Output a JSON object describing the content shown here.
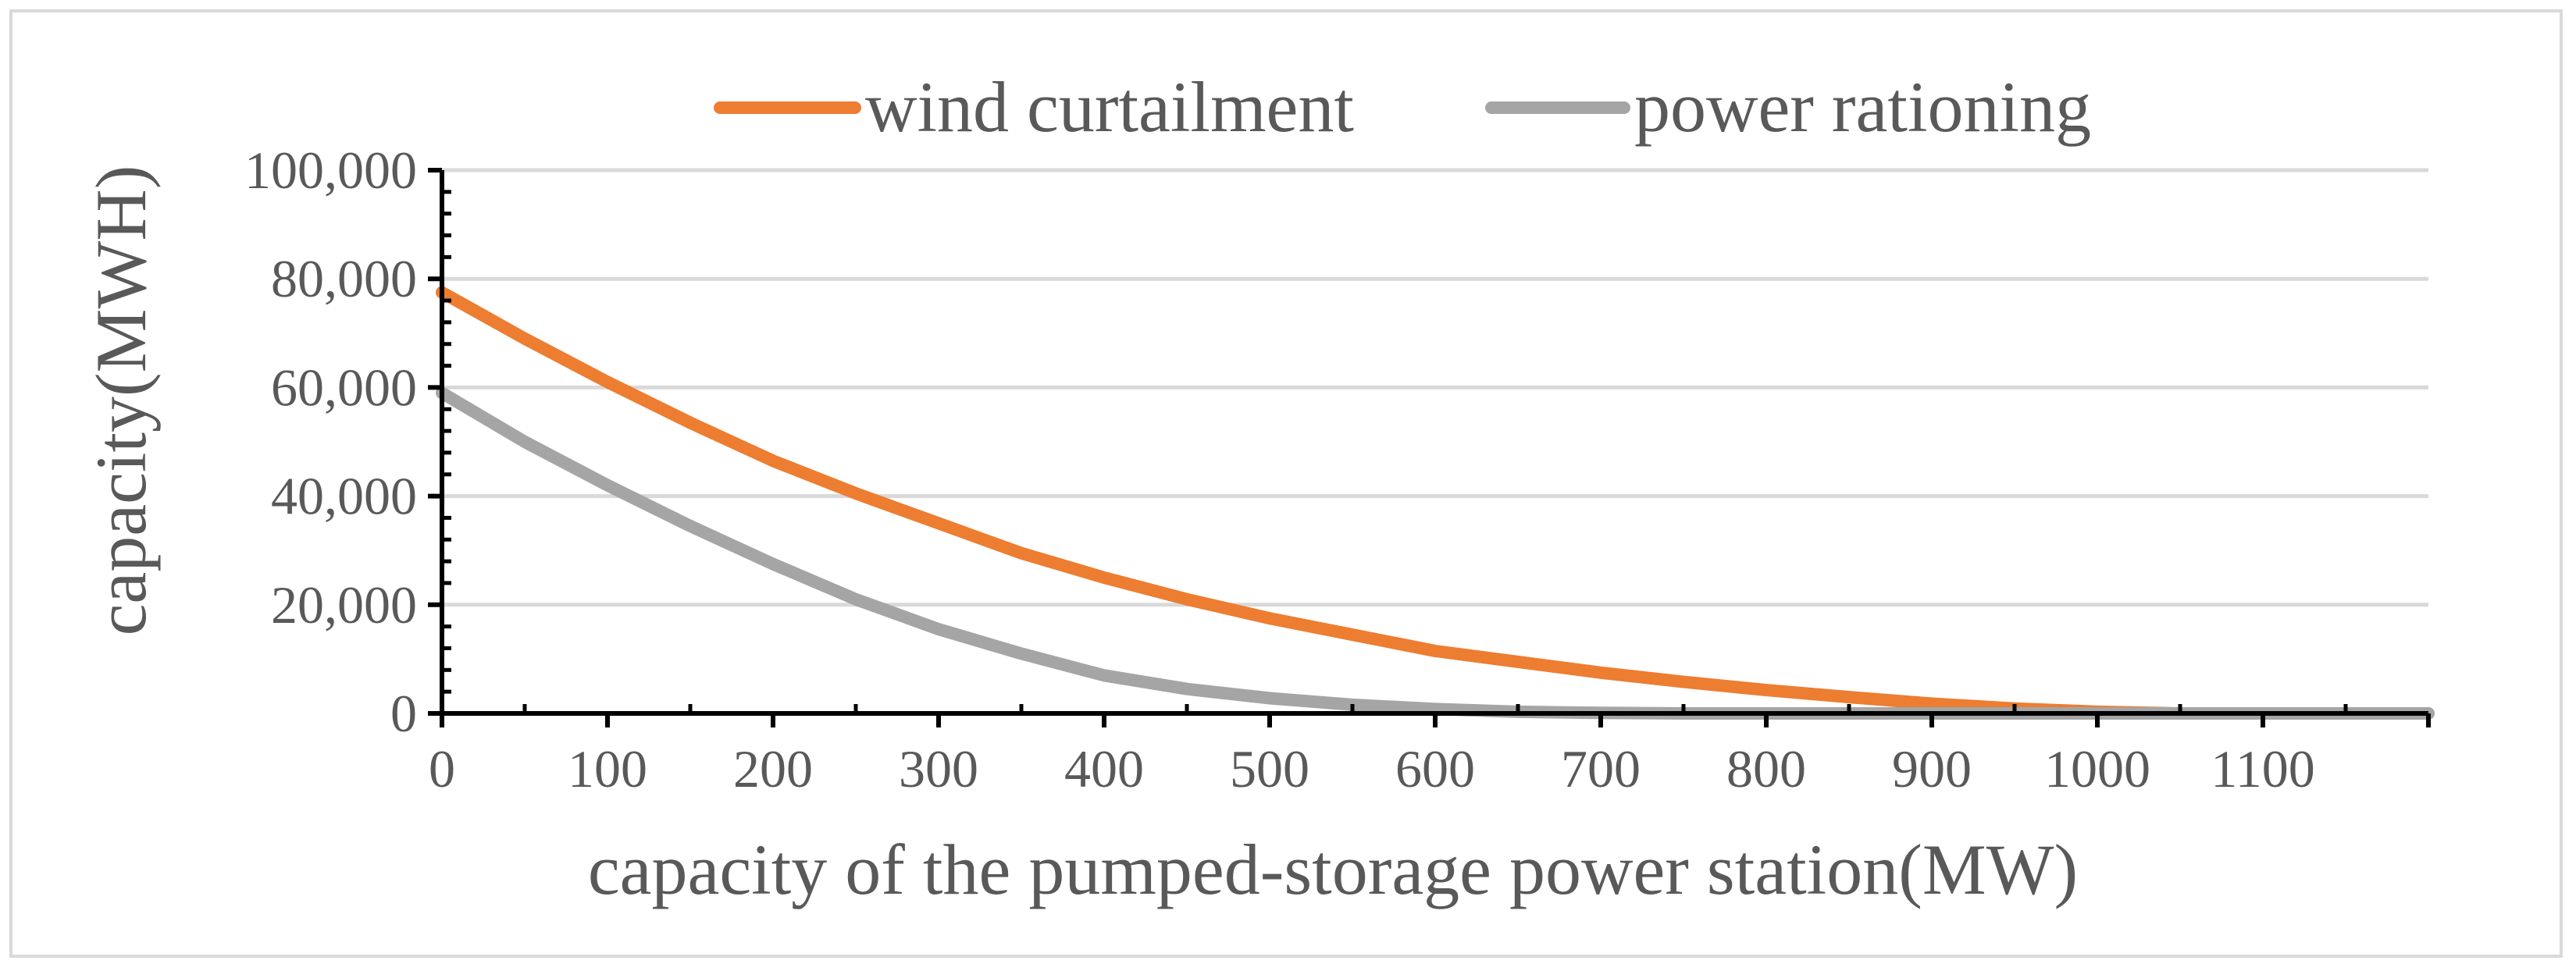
{
  "chart_data": {
    "type": "line",
    "title": "",
    "xlabel": "capacity of the pumped-storage power station(MW)",
    "ylabel": "capacity(MWH)",
    "xlim": [
      0,
      1200
    ],
    "ylim": [
      0,
      100000
    ],
    "x_ticks": [
      0,
      100,
      200,
      300,
      400,
      500,
      600,
      700,
      800,
      900,
      1000,
      1100
    ],
    "x_tick_labels": [
      "0",
      "100",
      "200",
      "300",
      "400",
      "500",
      "600",
      "700",
      "800",
      "900",
      "1000",
      "1100"
    ],
    "y_ticks": [
      0,
      20000,
      40000,
      60000,
      80000,
      100000
    ],
    "y_tick_labels": [
      "0",
      "20,000",
      "40,000",
      "60,000",
      "80,000",
      "100,000"
    ],
    "grid": true,
    "legend_position": "top",
    "x": [
      0,
      50,
      100,
      150,
      200,
      250,
      300,
      350,
      400,
      450,
      500,
      550,
      600,
      650,
      700,
      750,
      800,
      850,
      900,
      950,
      1000,
      1050,
      1100,
      1150,
      1200
    ],
    "series": [
      {
        "name": "wind curtailment",
        "color": "#ED7D31",
        "values": [
          77500,
          69000,
          61000,
          53500,
          46500,
          40500,
          35000,
          29500,
          25000,
          21000,
          17500,
          14500,
          11500,
          9500,
          7500,
          5800,
          4300,
          3000,
          1800,
          900,
          300,
          0,
          0,
          0,
          0
        ]
      },
      {
        "name": "power rationing",
        "color": "#A5A5A5",
        "values": [
          59000,
          50000,
          42000,
          34500,
          27500,
          21000,
          15500,
          11000,
          7000,
          4500,
          2800,
          1600,
          800,
          300,
          100,
          0,
          0,
          0,
          0,
          0,
          0,
          0,
          0,
          0,
          0
        ]
      }
    ]
  }
}
